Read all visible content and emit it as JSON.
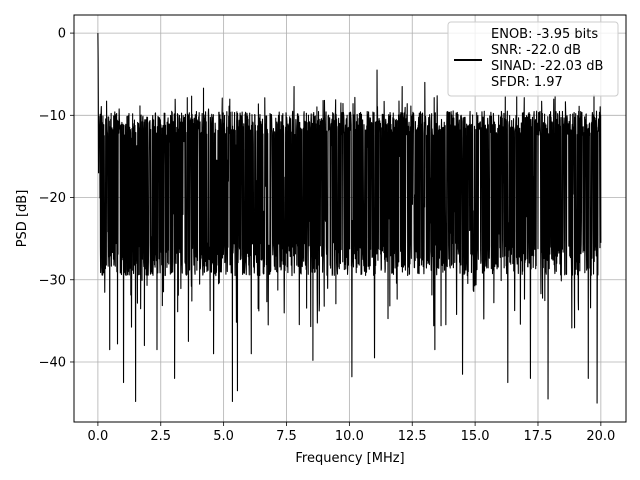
{
  "chart_data": {
    "type": "line",
    "title": "",
    "xlabel": "Frequency [MHz]",
    "ylabel": "PSD [dB]",
    "xlim": [
      -0.95,
      21.0
    ],
    "ylim": [
      -47.3,
      2.2
    ],
    "xticks": [
      0.0,
      2.5,
      5.0,
      7.5,
      10.0,
      12.5,
      15.0,
      17.5,
      20.0
    ],
    "xtick_labels": [
      "0.0",
      "2.5",
      "5.0",
      "7.5",
      "10.0",
      "12.5",
      "15.0",
      "17.5",
      "20.0"
    ],
    "yticks": [
      0,
      -10,
      -20,
      -30,
      -40
    ],
    "ytick_labels": [
      "0",
      "−10",
      "−20",
      "−30",
      "−40"
    ],
    "grid": true,
    "legend_placement": "top-right",
    "legend_lines": [
      "ENOB: -3.95 bits",
      "SNR: -22.0 dB",
      "SINAD: -22.03 dB",
      "SFDR: 1.97"
    ],
    "series_color": "#000000",
    "series": [
      {
        "name": "ENOB: -3.95 bits\nSNR: -22.0 dB\nSINAD: -22.03 dB\nSFDR: 1.97",
        "x_start": 0.0,
        "x_end": 20.0,
        "peak": {
          "x": 0.0,
          "y": 0.0
        },
        "typical_range": [
          -28,
          -11
        ],
        "max_noise": -4.5,
        "notable_minima": [
          {
            "x": 0.47,
            "y": -38.5
          },
          {
            "x": 0.78,
            "y": -37.8
          },
          {
            "x": 1.02,
            "y": -42.5
          },
          {
            "x": 1.5,
            "y": -44.8
          },
          {
            "x": 1.85,
            "y": -38.0
          },
          {
            "x": 2.35,
            "y": -38.5
          },
          {
            "x": 3.05,
            "y": -42.0
          },
          {
            "x": 3.6,
            "y": -37.5
          },
          {
            "x": 4.6,
            "y": -39.0
          },
          {
            "x": 5.35,
            "y": -44.8
          },
          {
            "x": 5.55,
            "y": -43.5
          },
          {
            "x": 6.1,
            "y": -39.0
          },
          {
            "x": 8.55,
            "y": -39.8
          },
          {
            "x": 10.1,
            "y": -41.8
          },
          {
            "x": 11.0,
            "y": -39.5
          },
          {
            "x": 13.4,
            "y": -38.5
          },
          {
            "x": 14.5,
            "y": -41.5
          },
          {
            "x": 16.3,
            "y": -42.5
          },
          {
            "x": 17.2,
            "y": -42.0
          },
          {
            "x": 17.9,
            "y": -44.5
          },
          {
            "x": 19.5,
            "y": -42.0
          },
          {
            "x": 19.85,
            "y": -45.0
          }
        ],
        "notable_maxima": [
          {
            "x": 11.1,
            "y": -4.5
          },
          {
            "x": 13.0,
            "y": -6.0
          },
          {
            "x": 7.8,
            "y": -6.5
          },
          {
            "x": 12.1,
            "y": -6.5
          },
          {
            "x": 4.2,
            "y": -6.7
          }
        ]
      }
    ]
  }
}
